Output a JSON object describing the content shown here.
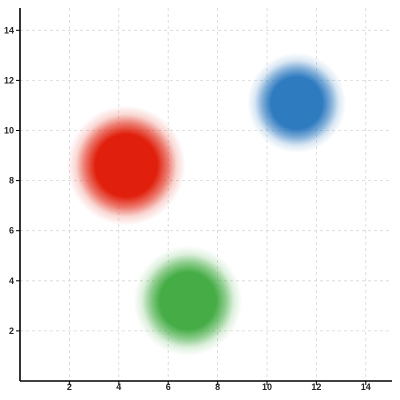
{
  "chart_data": {
    "type": "scatter",
    "title": "",
    "xlabel": "",
    "ylabel": "",
    "xlim": [
      0,
      15
    ],
    "ylim": [
      0,
      14.5
    ],
    "x_ticks": [
      2,
      4,
      6,
      8,
      10,
      12,
      14
    ],
    "y_ticks": [
      2,
      4,
      6,
      8,
      10,
      12,
      14
    ],
    "grid": true,
    "legend": "none",
    "series": [
      {
        "points": [
          {
            "x": 11.2,
            "y": 11.1,
            "r": 2.0
          }
        ],
        "color": "#2f7bc0"
      },
      {
        "points": [
          {
            "x": 4.3,
            "y": 8.6,
            "r": 2.4
          }
        ],
        "color": "#e0200c"
      },
      {
        "points": [
          {
            "x": 6.8,
            "y": 3.2,
            "r": 2.2
          }
        ],
        "color": "#46ad46"
      }
    ]
  }
}
